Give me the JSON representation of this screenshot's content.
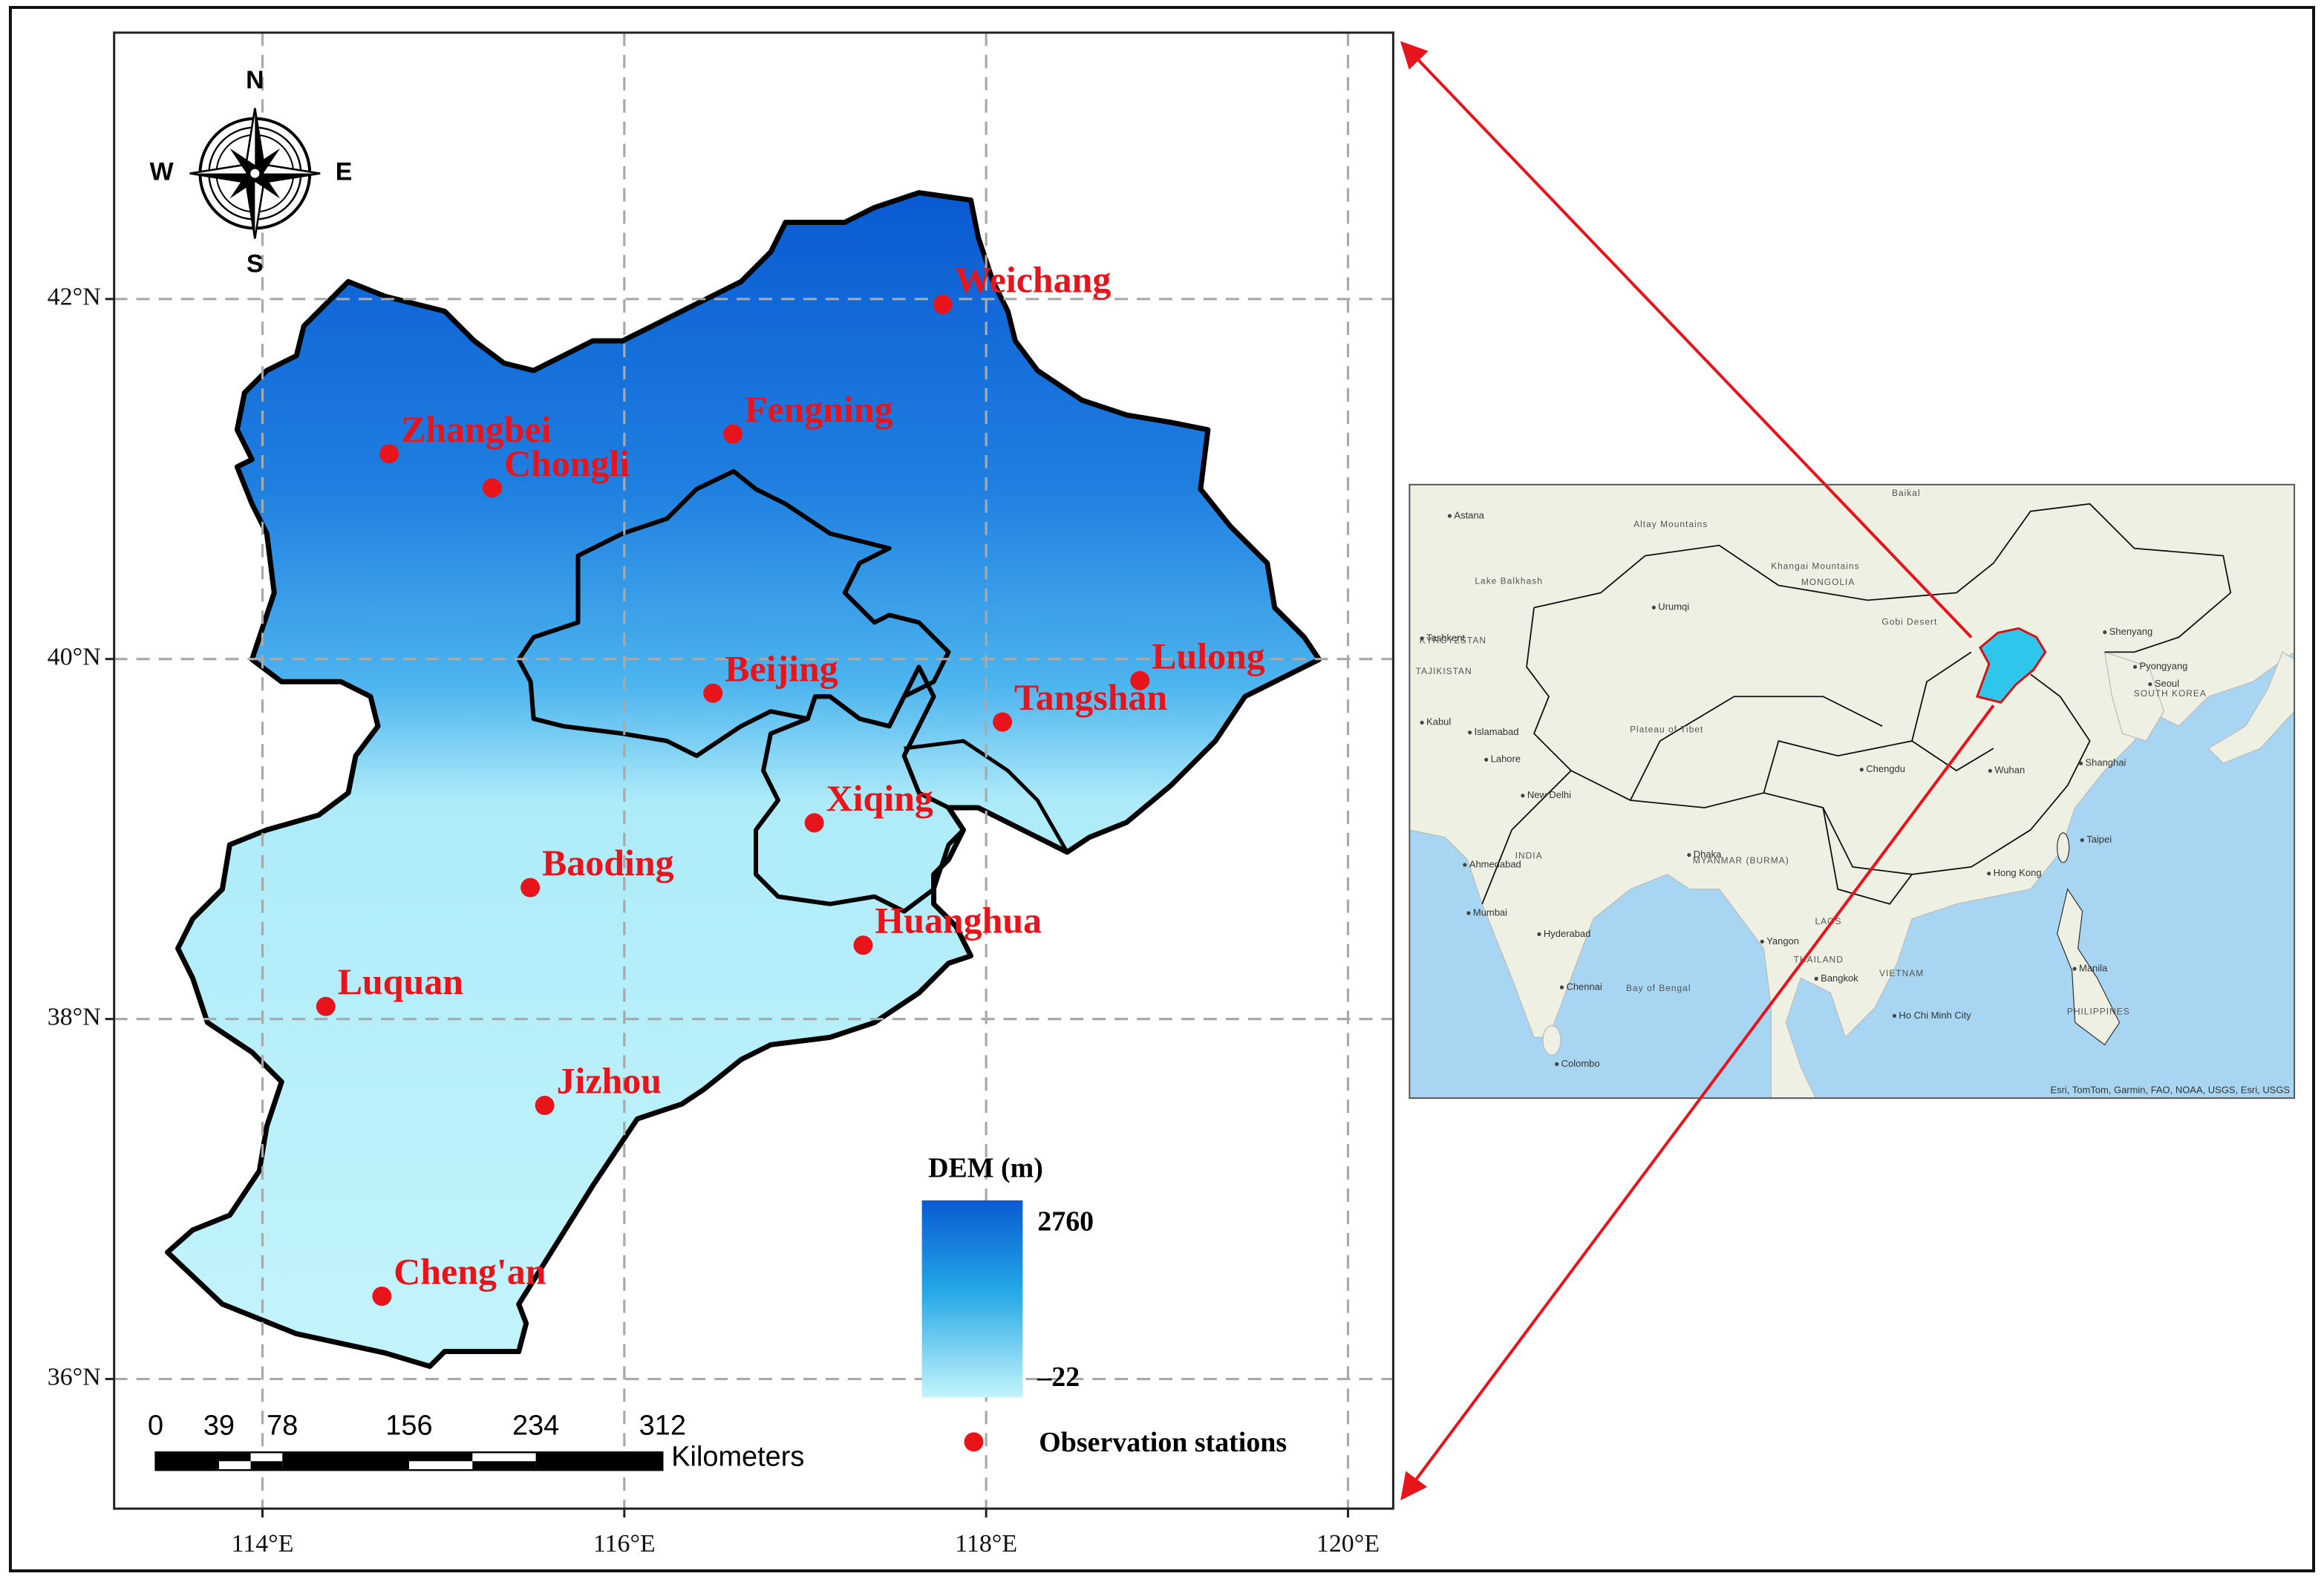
{
  "map": {
    "xlim": [
      113.18,
      120.25
    ],
    "ylim": [
      35.28,
      43.48
    ],
    "lon_ticks": [
      {
        "value": 114,
        "label": "114°E"
      },
      {
        "value": 116,
        "label": "116°E"
      },
      {
        "value": 118,
        "label": "118°E"
      },
      {
        "value": 120,
        "label": "120°E"
      }
    ],
    "lat_ticks": [
      {
        "value": 36,
        "label": "36°N"
      },
      {
        "value": 38,
        "label": "38°N"
      },
      {
        "value": 40,
        "label": "40°N"
      },
      {
        "value": 42,
        "label": "42°N"
      }
    ],
    "grid": true,
    "station_color": "#e8141b",
    "stations": [
      {
        "name": "Weichang",
        "lon": 117.76,
        "lat": 41.97
      },
      {
        "name": "Zhangbei",
        "lon": 114.7,
        "lat": 41.14
      },
      {
        "name": "Fengning",
        "lon": 116.6,
        "lat": 41.25
      },
      {
        "name": "Chongli",
        "lon": 115.27,
        "lat": 40.95
      },
      {
        "name": "Beijing",
        "lon": 116.49,
        "lat": 39.81
      },
      {
        "name": "Lulong",
        "lon": 118.85,
        "lat": 39.88
      },
      {
        "name": "Tangshan",
        "lon": 118.09,
        "lat": 39.65
      },
      {
        "name": "Xiqing",
        "lon": 117.05,
        "lat": 39.09
      },
      {
        "name": "Baoding",
        "lon": 115.48,
        "lat": 38.73
      },
      {
        "name": "Huanghua",
        "lon": 117.32,
        "lat": 38.41
      },
      {
        "name": "Luquan",
        "lon": 114.35,
        "lat": 38.07
      },
      {
        "name": "Jizhou",
        "lon": 115.56,
        "lat": 37.52
      },
      {
        "name": "Cheng'an",
        "lon": 114.66,
        "lat": 36.46
      }
    ]
  },
  "compass": {
    "n": "N",
    "s": "S",
    "e": "E",
    "w": "W"
  },
  "scale_bar": {
    "ticks": [
      0,
      39,
      78,
      156,
      234,
      312
    ],
    "unit": "Kilometers"
  },
  "legend": {
    "title": "DEM (m)",
    "dem_max": 2760,
    "dem_min": {
      "value": -22,
      "label": "–22"
    },
    "stations_label": "Observation stations"
  },
  "inset": {
    "cities": [
      {
        "text": "Astana",
        "lon": 71.4,
        "lat": 51.2
      },
      {
        "text": "Urumqi",
        "lon": 87.6,
        "lat": 43.8
      },
      {
        "text": "Tashkent",
        "lon": 69.2,
        "lat": 41.3
      },
      {
        "text": "Kabul",
        "lon": 69.2,
        "lat": 34.5
      },
      {
        "text": "Islamabad",
        "lon": 73.0,
        "lat": 33.7
      },
      {
        "text": "Lahore",
        "lon": 74.3,
        "lat": 31.5
      },
      {
        "text": "New Delhi",
        "lon": 77.2,
        "lat": 28.6
      },
      {
        "text": "Ahmedabad",
        "lon": 72.6,
        "lat": 23.0
      },
      {
        "text": "Mumbai",
        "lon": 72.9,
        "lat": 19.1
      },
      {
        "text": "Hyderabad",
        "lon": 78.5,
        "lat": 17.4
      },
      {
        "text": "Chennai",
        "lon": 80.3,
        "lat": 13.1
      },
      {
        "text": "Colombo",
        "lon": 79.9,
        "lat": 6.9
      },
      {
        "text": "Dhaka",
        "lon": 90.4,
        "lat": 23.8
      },
      {
        "text": "Chengdu",
        "lon": 104.1,
        "lat": 30.7
      },
      {
        "text": "Wuhan",
        "lon": 114.3,
        "lat": 30.6
      },
      {
        "text": "Shanghai",
        "lon": 121.5,
        "lat": 31.2
      },
      {
        "text": "Hong Kong",
        "lon": 114.2,
        "lat": 22.3
      },
      {
        "text": "Yangon",
        "lon": 96.2,
        "lat": 16.8
      },
      {
        "text": "Bangkok",
        "lon": 100.5,
        "lat": 13.8
      },
      {
        "text": "Ho Chi Minh City",
        "lon": 106.7,
        "lat": 10.8
      },
      {
        "text": "Manila",
        "lon": 121.0,
        "lat": 14.6
      },
      {
        "text": "Taipei",
        "lon": 121.6,
        "lat": 25.0
      },
      {
        "text": "Seoul",
        "lon": 127.0,
        "lat": 37.6
      },
      {
        "text": "Pyongyang",
        "lon": 125.8,
        "lat": 39.0
      },
      {
        "text": "Shenyang",
        "lon": 123.4,
        "lat": 41.8
      }
    ],
    "regions": [
      {
        "text": "Altay Mountains",
        "lon": 86.0,
        "lat": 50.5
      },
      {
        "text": "Khangai Mountains",
        "lon": 96.9,
        "lat": 47.1
      },
      {
        "text": "MONGOLIA",
        "lon": 99.3,
        "lat": 45.8
      },
      {
        "text": "Gobi Desert",
        "lon": 105.7,
        "lat": 42.6
      },
      {
        "text": "Baikal",
        "lon": 106.5,
        "lat": 53.0
      },
      {
        "text": "Lake Balkhash",
        "lon": 73.4,
        "lat": 45.9
      },
      {
        "text": "KYRGYZSTAN",
        "lon": 69.0,
        "lat": 41.1
      },
      {
        "text": "TAJIKISTAN",
        "lon": 68.7,
        "lat": 38.6
      },
      {
        "text": "Plateau of Tibet",
        "lon": 85.7,
        "lat": 33.9
      },
      {
        "text": "INDIA",
        "lon": 76.6,
        "lat": 23.7
      },
      {
        "text": "MYANMAR (BURMA)",
        "lon": 90.7,
        "lat": 23.3
      },
      {
        "text": "LAOS",
        "lon": 100.4,
        "lat": 18.4
      },
      {
        "text": "THAILAND",
        "lon": 98.7,
        "lat": 15.3
      },
      {
        "text": "VIETNAM",
        "lon": 105.5,
        "lat": 14.2
      },
      {
        "text": "PHILIPPINES",
        "lon": 120.4,
        "lat": 11.1
      },
      {
        "text": "Bay of Bengal",
        "lon": 85.4,
        "lat": 13.0
      },
      {
        "text": "SOUTH KOREA",
        "lon": 125.7,
        "lat": 36.8
      }
    ],
    "attribution": "Esri, TomTom, Garmin, FAO, NOAA, USGS, Esri, USGS"
  }
}
